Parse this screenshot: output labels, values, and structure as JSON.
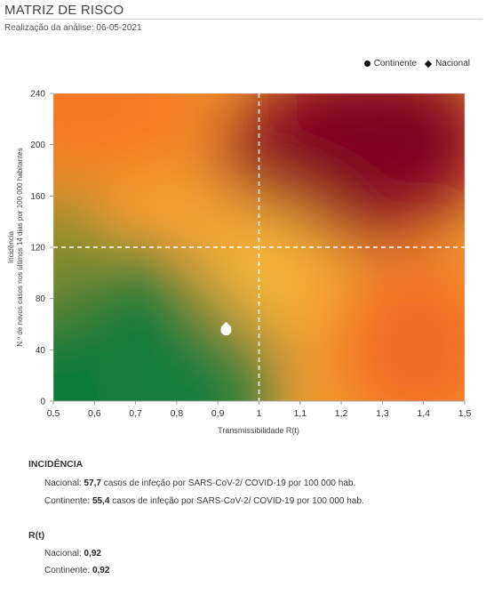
{
  "header": {
    "title": "MATRIZ DE RISCO",
    "subtitle": "Realização da análise: 06-05-2021"
  },
  "legend": {
    "items": [
      {
        "label": "Continente",
        "marker": "circle"
      },
      {
        "label": "Nacional",
        "marker": "diamond"
      }
    ]
  },
  "chart_data": {
    "type": "scatter",
    "xlabel": "Transmissibilidade R(t)",
    "ylabel_lines": [
      "Incidência",
      "N.º de novos casos nos últimos 14 dias por 100 000 habitantes"
    ],
    "x_ticks": [
      "0,5",
      "0,6",
      "0,7",
      "0,8",
      "0,9",
      "1",
      "1,1",
      "1,2",
      "1,3",
      "1,4",
      "1,5"
    ],
    "y_ticks": [
      "0",
      "40",
      "80",
      "120",
      "160",
      "200",
      "240"
    ],
    "xlim": [
      0.5,
      1.5
    ],
    "ylim": [
      0,
      240
    ],
    "thresholds": {
      "x": 1,
      "y": 120
    },
    "background": "risk heatmap: green (low R, low incidence) to dark red (high R, high incidence)",
    "colors": {
      "green": "#0f7a3b",
      "yellow": "#f7b33b",
      "orange": "#f47b1f",
      "red": "#9b0d1f"
    },
    "series": [
      {
        "name": "Continente",
        "marker": "circle",
        "x": 0.92,
        "y": 55.4,
        "color": "#ffffff"
      },
      {
        "name": "Nacional",
        "marker": "diamond",
        "x": 0.92,
        "y": 57.7,
        "color": "#ffffff"
      }
    ]
  },
  "incidencia": {
    "heading": "INCIDÊNCIA",
    "nacional": {
      "label": "Nacional:",
      "value": "57,7",
      "text": "casos de infeção por SARS-CoV-2/ COVID-19 por 100 000 hab."
    },
    "continente": {
      "label": "Continente:",
      "value": "55,4",
      "text": "casos de infeção por SARS-CoV-2/ COVID-19 por 100 000 hab."
    }
  },
  "rt": {
    "heading": "R(t)",
    "nacional": {
      "label": "Nacional:",
      "value": "0,92"
    },
    "continente": {
      "label": "Continente:",
      "value": "0,92"
    }
  }
}
